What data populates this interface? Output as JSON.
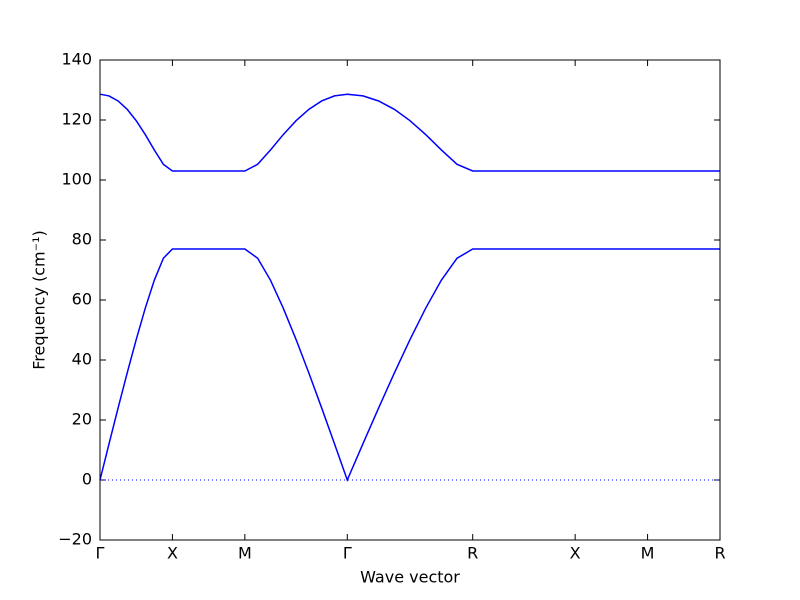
{
  "chart_data": {
    "type": "line",
    "xlabel": "Wave vector",
    "ylabel": "Frequency (cm⁻¹)",
    "x": [
      0,
      0.0625,
      0.125,
      0.1875,
      0.25,
      0.3125,
      0.375,
      0.4375,
      0.5,
      1.0,
      1.0884,
      1.1768,
      1.2652,
      1.3536,
      1.4419,
      1.5303,
      1.6187,
      1.7071,
      1.8154,
      1.9236,
      2.0319,
      2.1401,
      2.2484,
      2.3566,
      2.4649,
      2.5731,
      4.2802
    ],
    "series": [
      {
        "color": "#0000ff",
        "values": [
          0,
          12.09,
          24.02,
          35.66,
          46.82,
          57.27,
          66.61,
          73.92,
          77,
          77,
          73.92,
          66.61,
          57.27,
          46.82,
          35.66,
          24.02,
          12.09,
          0,
          12.09,
          24.02,
          35.66,
          46.82,
          57.27,
          66.61,
          73.92,
          77,
          77
        ]
      },
      {
        "color": "#0000ff",
        "values": [
          128.6,
          128.03,
          126.34,
          123.56,
          119.77,
          115.14,
          110.01,
          105.23,
          103,
          103,
          105.23,
          110.01,
          115.14,
          119.77,
          123.56,
          126.34,
          128.03,
          128.6,
          128.03,
          126.34,
          123.56,
          119.77,
          115.14,
          110.01,
          105.23,
          103,
          103
        ]
      }
    ],
    "xlim": [
      0,
      4.2802
    ],
    "xticks": [
      {
        "value": 0,
        "label": "Γ"
      },
      {
        "value": 0.5,
        "label": "X"
      },
      {
        "value": 1.0,
        "label": "M"
      },
      {
        "value": 1.7071,
        "label": "Γ"
      },
      {
        "value": 2.5731,
        "label": "R"
      },
      {
        "value": 3.2802,
        "label": "X"
      },
      {
        "value": 3.7802,
        "label": "M"
      },
      {
        "value": 4.2802,
        "label": "R"
      }
    ],
    "ylim": [
      -20,
      140
    ],
    "yticks": [
      {
        "value": -20,
        "label": "−20"
      },
      0,
      20,
      40,
      60,
      80,
      100,
      120,
      140
    ],
    "zero_line": true,
    "grid": false
  }
}
